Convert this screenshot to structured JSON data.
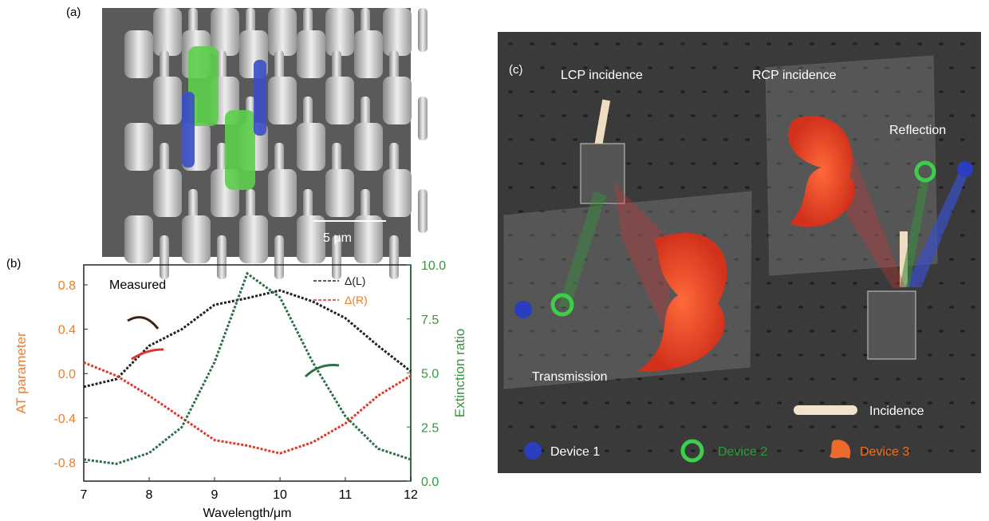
{
  "panel_a": {
    "label": "(a)",
    "scale_bar": "5 μm"
  },
  "chart_data": {
    "type": "line",
    "panel_label": "(b)",
    "annotation": "Measured",
    "x_label": "Wavelength/μm",
    "y_label": "AT parameter",
    "y2_label": "Extinction ratio",
    "x": [
      7,
      7.5,
      8,
      8.5,
      9,
      9.5,
      10,
      10.5,
      11,
      11.5,
      12
    ],
    "series": [
      {
        "name": "Δ(L)",
        "color": "#222222",
        "values": [
          -0.12,
          -0.05,
          0.25,
          0.4,
          0.62,
          0.68,
          0.75,
          0.65,
          0.5,
          0.25,
          0.02
        ]
      },
      {
        "name": "Δ(R)",
        "color": "#dd3a2a",
        "values": [
          0.1,
          -0.02,
          -0.2,
          -0.4,
          -0.6,
          -0.65,
          -0.72,
          -0.62,
          -0.45,
          -0.2,
          -0.02
        ]
      },
      {
        "name": "Extinction ratio",
        "color": "#2e6e46",
        "axis": "y2",
        "values": [
          1.0,
          0.8,
          1.3,
          2.5,
          5.5,
          9.6,
          8.5,
          5.5,
          3.0,
          1.5,
          1.0
        ]
      }
    ],
    "xlim": [
      7,
      12
    ],
    "xticks": [
      7,
      8,
      9,
      10,
      11,
      12
    ],
    "ylim": [
      -0.97,
      0.98
    ],
    "yticks": [
      -0.8,
      -0.4,
      {
        "value": 0,
        "label": "0.0"
      },
      0.4,
      0.8
    ],
    "y2lim": [
      0,
      10
    ],
    "y2ticks": [
      {
        "value": 0,
        "label": "0.0"
      },
      2.5,
      {
        "value": 5,
        "label": "5.0"
      },
      7.5,
      {
        "value": 10,
        "label": "10.0"
      }
    ]
  },
  "panel_c": {
    "label": "(c)",
    "lcp": "LCP incidence",
    "rcp": "RCP incidence",
    "reflection": "Reflection",
    "transmission": "Transmission",
    "incidence": "Incidence",
    "device1": "Device 1",
    "device2": "Device 2",
    "device3": "Device 3"
  }
}
